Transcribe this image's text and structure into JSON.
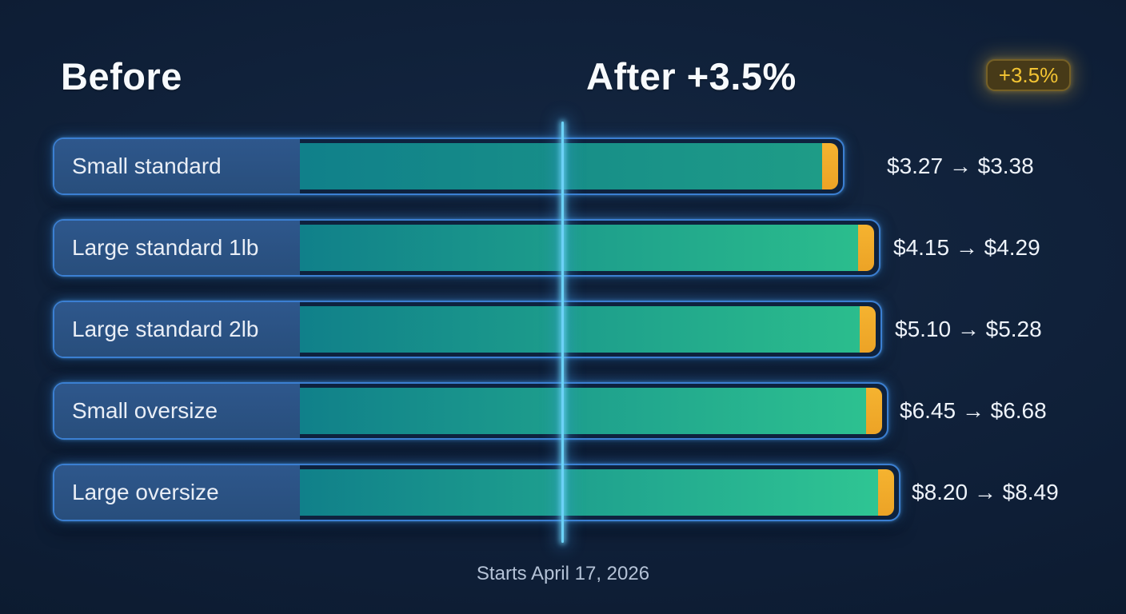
{
  "header": {
    "before_title": "Before",
    "after_title": "After +3.5%",
    "badge_label": "+3.5%"
  },
  "footer": {
    "note": "Starts April 17, 2026"
  },
  "rows": [
    {
      "label": "Small standard",
      "before": "$3.27",
      "after": "$3.38",
      "price_text": "$3.27 → $3.38",
      "row_style": "width:990px",
      "fill_style": "background:linear-gradient(90deg,#10808a 0%,#1e9c87 100%)",
      "price_style": "left:calc(100% + 55px)"
    },
    {
      "label": "Large standard 1lb",
      "before": "$4.15",
      "after": "$4.29",
      "price_text": "$4.15 → $4.29",
      "row_style": "width:1035px",
      "fill_style": "background:linear-gradient(90deg,#10808a 0%,#2bbd8d 100%)",
      "price_style": "left:calc(100% + 18px)"
    },
    {
      "label": "Large standard 2lb",
      "before": "$5.10",
      "after": "$5.28",
      "price_text": "$5.10 → $5.28",
      "row_style": "width:1037px",
      "fill_style": "background:linear-gradient(90deg,#10808a 0%,#2bbd8d 100%)",
      "price_style": "left:calc(100% + 18px)"
    },
    {
      "label": "Small oversize",
      "before": "$6.45",
      "after": "$6.68",
      "price_text": "$6.45 → $6.68",
      "row_style": "width:1045px",
      "fill_style": "background:linear-gradient(90deg,#10808a 0%,#2dc190 100%)",
      "price_style": "left:calc(100% + 16px)"
    },
    {
      "label": "Large oversize",
      "before": "$8.20",
      "after": "$8.49",
      "price_text": "$8.20 → $8.49",
      "row_style": "width:1060px",
      "fill_style": "background:linear-gradient(90deg,#10808a 0%,#2fc593 100%)",
      "price_style": "left:calc(100% + 16px)"
    }
  ],
  "colors": {
    "background": "#0e1e36",
    "row_border": "#3b7fd2",
    "label_panel": "#2b5282",
    "bar_teal": "#10808a",
    "bar_green": "#2fc593",
    "tip_orange": "#f0a82c",
    "center_line": "#6cd2f7",
    "badge_text": "#f3c433",
    "badge_background": "#473a18"
  },
  "chart_data": {
    "type": "bar",
    "orientation": "horizontal",
    "title": "Before / After +3.5%",
    "increase_pct": 3.5,
    "categories": [
      "Small standard",
      "Large standard 1lb",
      "Large standard 2lb",
      "Small oversize",
      "Large oversize"
    ],
    "series": [
      {
        "name": "Before",
        "values": [
          3.27,
          4.15,
          5.1,
          6.45,
          8.2
        ]
      },
      {
        "name": "After (+3.5%)",
        "values": [
          3.38,
          4.29,
          5.28,
          6.68,
          8.49
        ]
      }
    ],
    "unit": "USD",
    "annotations": [
      "+3.5%",
      "Starts April 17, 2026"
    ],
    "legend_position": "none",
    "grid": false
  }
}
